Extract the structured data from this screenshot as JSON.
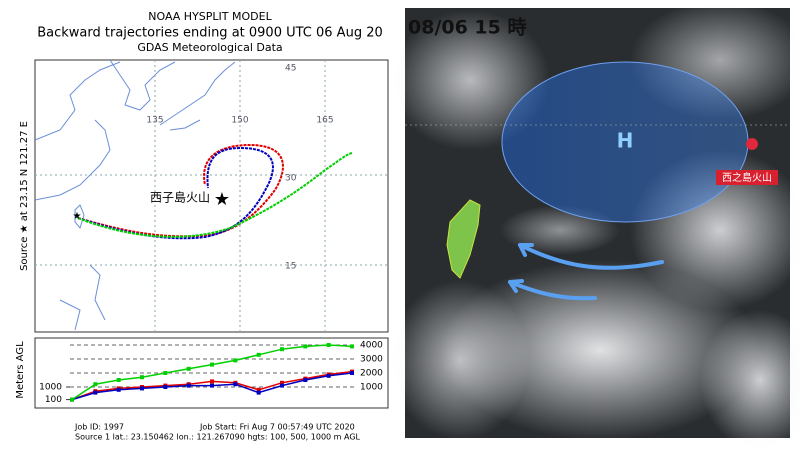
{
  "left_panel": {
    "title_lines": [
      "NOAA HYSPLIT MODEL",
      "Backward trajectories ending at 0900 UTC 06 Aug 20",
      "GDAS Meteorological Data"
    ],
    "source_label": "Source ★ at  23.15 N  121.27 E",
    "lon_labels": [
      "135",
      "150",
      "165"
    ],
    "lat_labels": [
      "45",
      "30",
      "15"
    ],
    "volcano_label": "西子島火山",
    "footer": [
      "Job ID: 1997",
      "Job Start: Fri Aug  7 00:57:49 UTC 2020",
      "Source 1 lat.: 23.150462  lon.: 121.267090  hgts: 100, 500, 1000 m AGL"
    ]
  },
  "chart_data": {
    "type": "line",
    "y_label": "Meters AGL",
    "ylim": [
      0,
      4500
    ],
    "yticks": [
      1000,
      2000,
      3000,
      4000
    ],
    "yticks_left": [
      100,
      1000
    ],
    "series": [
      {
        "name": "100 m",
        "color": "#e00000",
        "values": [
          100,
          700,
          900,
          1000,
          1100,
          1200,
          1400,
          1300,
          800,
          1300,
          1600,
          1900,
          2100
        ]
      },
      {
        "name": "500 m",
        "color": "#0000c0",
        "values": [
          100,
          600,
          800,
          900,
          1000,
          1100,
          1100,
          1200,
          600,
          1100,
          1500,
          1800,
          2000
        ]
      },
      {
        "name": "1000 m",
        "color": "#00d000",
        "values": [
          100,
          1200,
          1500,
          1700,
          2000,
          2300,
          2600,
          2900,
          3300,
          3700,
          3900,
          4000,
          3900
        ]
      }
    ]
  },
  "right_panel": {
    "timestamp": "08/06 15 時",
    "high_label": "H",
    "volcano_tag": "西之島火山"
  }
}
